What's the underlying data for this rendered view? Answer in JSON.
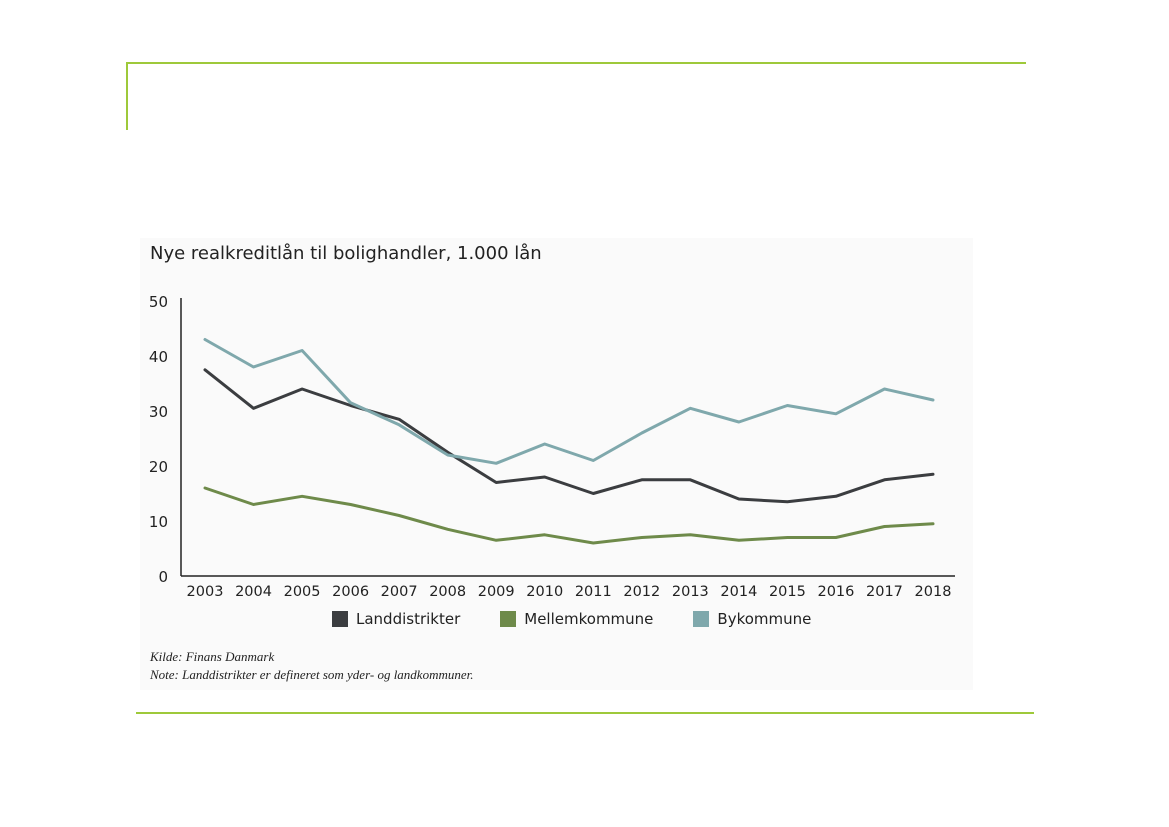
{
  "chart_data": {
    "type": "line",
    "title": "Nye realkreditlån til bolighandler, 1.000 lån",
    "xlabel": "",
    "ylabel": "",
    "ylim": [
      0,
      50
    ],
    "yticks": [
      0,
      10,
      20,
      30,
      40,
      50
    ],
    "x": [
      "2003",
      "2004",
      "2005",
      "2006",
      "2007",
      "2008",
      "2009",
      "2010",
      "2011",
      "2012",
      "2013",
      "2014",
      "2015",
      "2016",
      "2017",
      "2018"
    ],
    "series": [
      {
        "name": "Landdistrikter",
        "color": "#3b3d40",
        "values": [
          37.5,
          30.5,
          34,
          31,
          28.5,
          22.5,
          17,
          18,
          15,
          17.5,
          17.5,
          14,
          13.5,
          14.5,
          17.5,
          18.5
        ]
      },
      {
        "name": "Mellemkommune",
        "color": "#6e8a4a",
        "values": [
          16,
          13,
          14.5,
          13,
          11,
          8.5,
          6.5,
          7.5,
          6,
          7,
          7.5,
          6.5,
          7,
          7,
          9,
          9.5
        ]
      },
      {
        "name": "Bykommune",
        "color": "#7fa8ac",
        "values": [
          43,
          38,
          41,
          31.5,
          27.5,
          22,
          20.5,
          24,
          21,
          26,
          30.5,
          28,
          31,
          29.5,
          34,
          32
        ]
      }
    ],
    "legend_position": "bottom",
    "grid": false
  },
  "source": {
    "kilde": "Kilde: Finans Danmark",
    "note": "Note: Landdistrikter er defineret som yder- og landkommuner."
  }
}
